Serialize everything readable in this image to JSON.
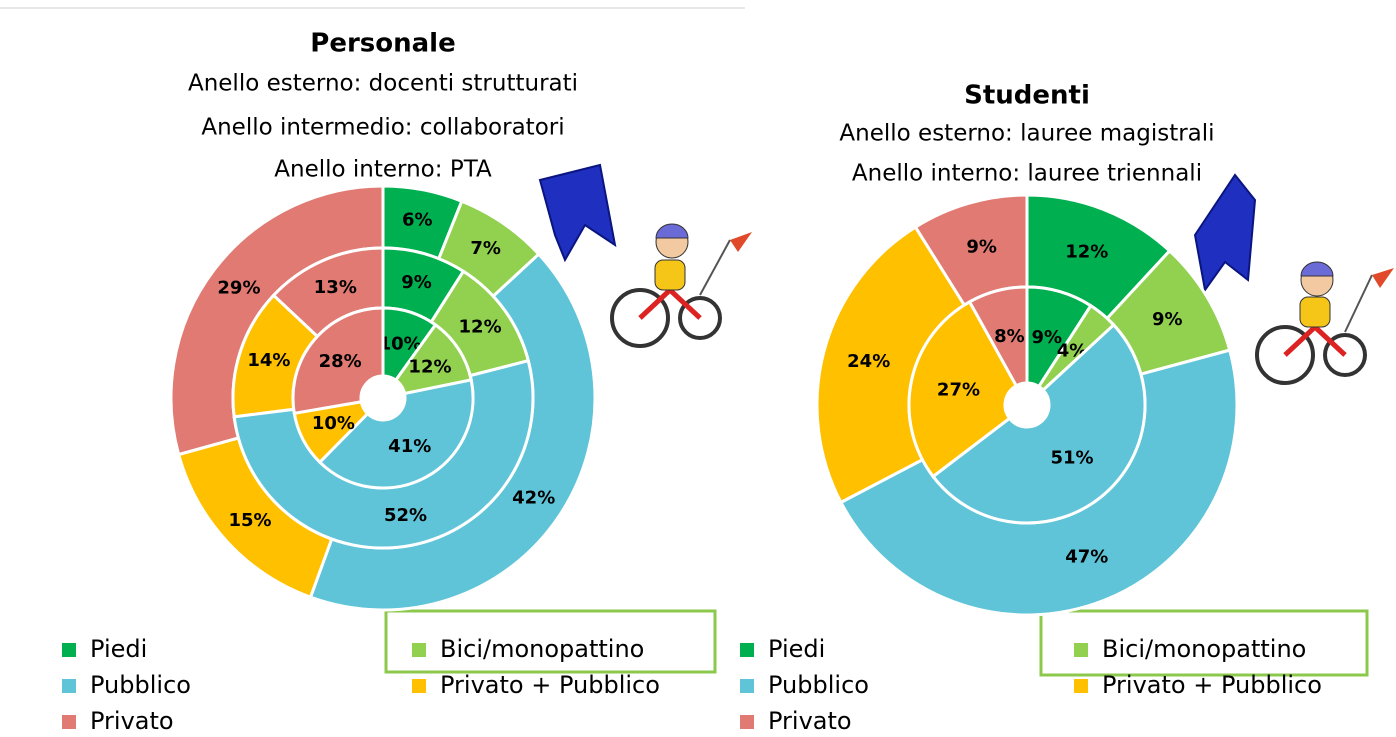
{
  "chart_data": [
    {
      "type": "donut",
      "title": "Personale",
      "categories": [
        "Piedi",
        "Bici/monopattino",
        "Pubblico",
        "Privato + Pubblico",
        "Privato"
      ],
      "colors": [
        "#00b050",
        "#92d050",
        "#5fc4d8",
        "#ffc000",
        "#e07a72"
      ],
      "series": [
        {
          "name": "Anello esterno: docenti strutturati",
          "values": [
            6,
            7,
            42,
            15,
            29
          ],
          "value_labels": [
            "6%",
            "7%",
            "42%",
            "15%",
            "29%"
          ]
        },
        {
          "name": "Anello intermedio: collaboratori",
          "values": [
            9,
            12,
            52,
            14,
            13
          ],
          "value_labels": [
            "9%",
            "12%",
            "52%",
            "14%",
            "13%"
          ]
        },
        {
          "name": "Anello interno: PTA",
          "values": [
            10,
            12,
            41,
            10,
            28
          ],
          "value_labels": [
            "10%",
            "12%",
            "41%",
            "10%",
            "28%"
          ]
        }
      ]
    },
    {
      "type": "donut",
      "title": "Studenti",
      "categories": [
        "Piedi",
        "Bici/monopattino",
        "Pubblico",
        "Privato + Pubblico",
        "Privato"
      ],
      "colors": [
        "#00b050",
        "#92d050",
        "#5fc4d8",
        "#ffc000",
        "#e07a72"
      ],
      "series": [
        {
          "name": "Anello esterno: lauree magistrali",
          "values": [
            12,
            9,
            47,
            24,
            9
          ],
          "value_labels": [
            "12%",
            "9%",
            "47%",
            "24%",
            "9%"
          ]
        },
        {
          "name": "Anello interno: lauree triennali",
          "values": [
            9,
            4,
            51,
            27,
            8
          ],
          "value_labels": [
            "9%",
            "4%",
            "51%",
            "27%",
            "8%"
          ]
        }
      ]
    }
  ]
}
